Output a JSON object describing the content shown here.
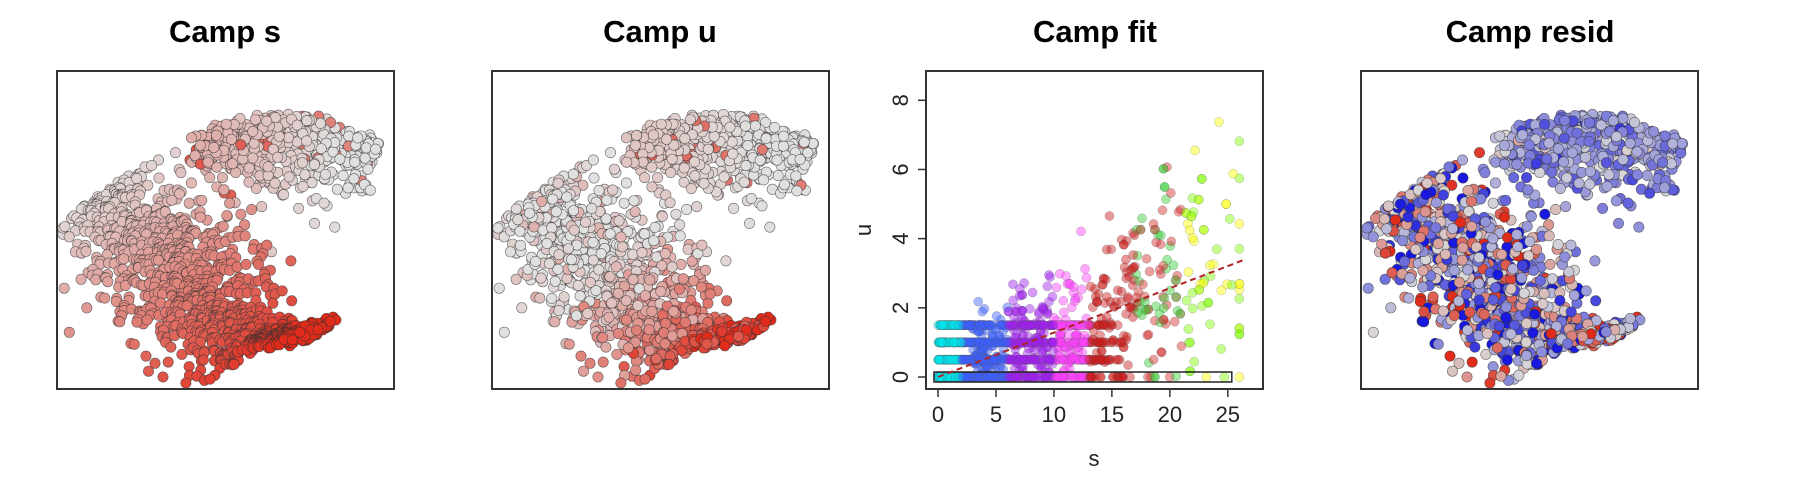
{
  "figure": {
    "panels": [
      {
        "id": "s",
        "title": "Camp s",
        "kind": "embedding",
        "color_mode": "s_expression"
      },
      {
        "id": "u",
        "title": "Camp u",
        "kind": "embedding",
        "color_mode": "u_expression"
      },
      {
        "id": "fit",
        "title": "Camp fit",
        "kind": "scatter"
      },
      {
        "id": "resid",
        "title": "Camp resid",
        "kind": "embedding",
        "color_mode": "residual"
      }
    ],
    "colors": {
      "low_expression": "#e0e0e0",
      "high_expression": "#e02a1a",
      "negative_residual": "#1818e0",
      "neutral_residual": "#d8d8d8",
      "positive_residual": "#e02a1a",
      "point_outline": "#333333",
      "fit_line": "#b22222"
    }
  },
  "chart_data": [
    {
      "type": "scatter",
      "title": "Camp s",
      "description_of_encoding": "",
      "xlabel": "",
      "ylabel": ""
    },
    {
      "type": "scatter",
      "title": "Camp u",
      "xlabel": "",
      "ylabel": ""
    },
    {
      "type": "scatter",
      "title": "Camp fit",
      "xlabel": "s",
      "ylabel": "u",
      "xlim": [
        0,
        27
      ],
      "ylim": [
        0,
        8.5
      ],
      "x_ticks": [
        "0",
        "5",
        "10",
        "15",
        "20",
        "25"
      ],
      "y_ticks": [
        "0",
        "2",
        "4",
        "6",
        "8"
      ],
      "fit_line": {
        "x": [
          0,
          26.5
        ],
        "y": [
          0,
          3.4
        ]
      },
      "grid": false
    },
    {
      "type": "scatter",
      "title": "Camp resid",
      "xlabel": "",
      "ylabel": ""
    }
  ]
}
